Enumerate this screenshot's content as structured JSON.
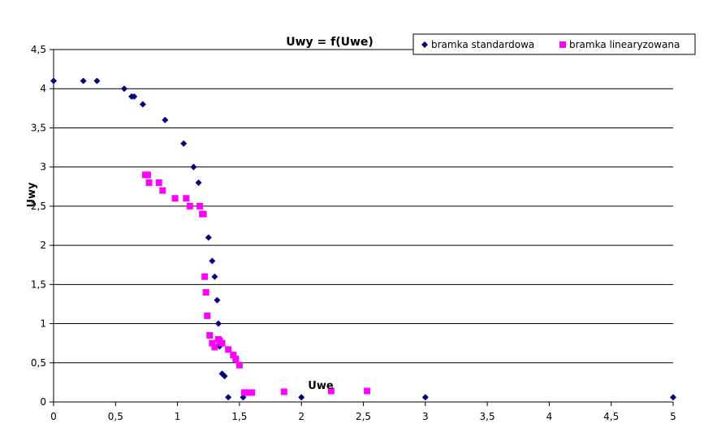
{
  "chart_data": {
    "type": "scatter",
    "title": "Uwy = f(Uwe)",
    "xlabel": "Uwe",
    "ylabel": "Uwy",
    "xlim": [
      0,
      5
    ],
    "ylim": [
      0,
      4.5
    ],
    "x_ticks": [
      "0",
      "0,5",
      "1",
      "1,5",
      "2",
      "2,5",
      "3",
      "3,5",
      "4",
      "4,5",
      "5"
    ],
    "y_ticks": [
      "0",
      "0,5",
      "1",
      "1,5",
      "2",
      "2,5",
      "3",
      "3,5",
      "4",
      "4,5"
    ],
    "grid": "horizontal",
    "legend_position": "top-right",
    "series": [
      {
        "name": "bramka standardowa",
        "marker": "diamond",
        "color": "#000080",
        "points": [
          [
            0,
            4.1
          ],
          [
            0.24,
            4.1
          ],
          [
            0.35,
            4.1
          ],
          [
            0.57,
            4.0
          ],
          [
            0.63,
            3.9
          ],
          [
            0.65,
            3.9
          ],
          [
            0.72,
            3.8
          ],
          [
            0.9,
            3.6
          ],
          [
            1.05,
            3.3
          ],
          [
            1.13,
            3.0
          ],
          [
            1.17,
            2.8
          ],
          [
            1.25,
            2.1
          ],
          [
            1.28,
            1.8
          ],
          [
            1.3,
            1.6
          ],
          [
            1.32,
            1.3
          ],
          [
            1.33,
            1.0
          ],
          [
            1.34,
            0.71
          ],
          [
            1.36,
            0.36
          ],
          [
            1.38,
            0.33
          ],
          [
            1.41,
            0.06
          ],
          [
            1.53,
            0.06
          ],
          [
            2.0,
            0.06
          ],
          [
            3.0,
            0.06
          ],
          [
            5.0,
            0.06
          ]
        ]
      },
      {
        "name": "bramka linearyzowana",
        "marker": "square",
        "color": "#ff00ff",
        "points": [
          [
            0.74,
            2.9
          ],
          [
            0.76,
            2.9
          ],
          [
            0.77,
            2.8
          ],
          [
            0.85,
            2.8
          ],
          [
            0.88,
            2.7
          ],
          [
            0.98,
            2.6
          ],
          [
            1.07,
            2.6
          ],
          [
            1.1,
            2.5
          ],
          [
            1.18,
            2.5
          ],
          [
            1.2,
            2.4
          ],
          [
            1.21,
            2.4
          ],
          [
            1.22,
            1.6
          ],
          [
            1.23,
            1.4
          ],
          [
            1.24,
            1.1
          ],
          [
            1.26,
            0.85
          ],
          [
            1.28,
            0.75
          ],
          [
            1.3,
            0.7
          ],
          [
            1.33,
            0.8
          ],
          [
            1.34,
            0.78
          ],
          [
            1.36,
            0.75
          ],
          [
            1.41,
            0.67
          ],
          [
            1.45,
            0.6
          ],
          [
            1.47,
            0.55
          ],
          [
            1.5,
            0.47
          ],
          [
            1.54,
            0.12
          ],
          [
            1.57,
            0.12
          ],
          [
            1.6,
            0.12
          ],
          [
            1.86,
            0.13
          ],
          [
            2.24,
            0.14
          ],
          [
            2.53,
            0.14
          ]
        ]
      }
    ]
  }
}
